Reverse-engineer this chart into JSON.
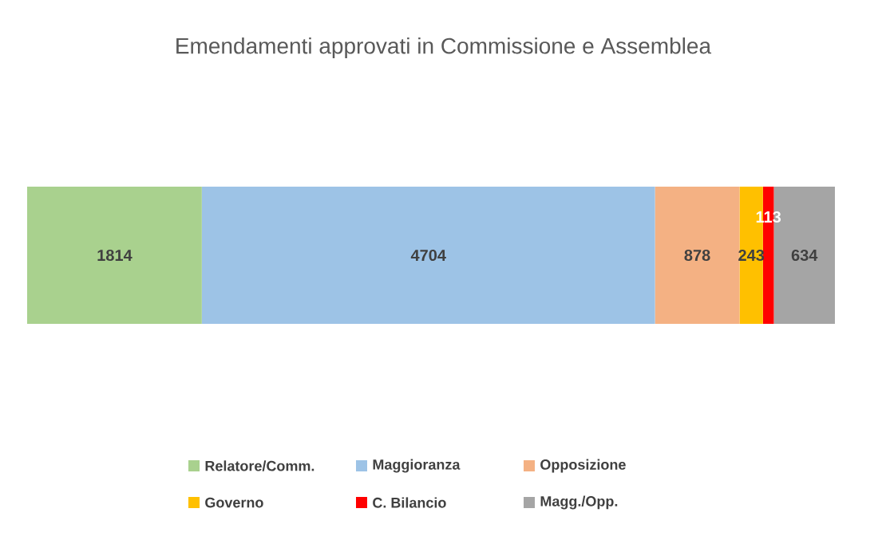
{
  "chart_data": {
    "type": "bar",
    "title": "Emendamenti approvati in Commissione e Assemblea",
    "orientation": "horizontal",
    "stacked": true,
    "categories": [
      null
    ],
    "data_labels": true,
    "legend": "bottom",
    "series": [
      {
        "name": "Relatore/Comm.",
        "color": "#a9d18e",
        "values": [
          1814
        ]
      },
      {
        "name": "Maggioranza",
        "color": "#9dc3e6",
        "values": [
          4704
        ]
      },
      {
        "name": "Opposizione",
        "color": "#f4b183",
        "values": [
          878
        ]
      },
      {
        "name": "Governo",
        "color": "#ffc000",
        "values": [
          243
        ]
      },
      {
        "name": "C. Bilancio",
        "color": "#ff0000",
        "values": [
          113
        ]
      },
      {
        "name": "Magg./Opp.",
        "color": "#a5a5a5",
        "values": [
          634
        ]
      }
    ]
  }
}
